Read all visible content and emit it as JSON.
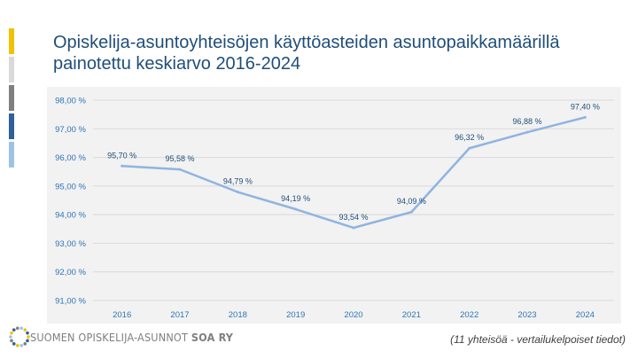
{
  "slide": {
    "title_line1": "Opiskelija-asuntoyhteisöjen käyttöasteiden asuntopaikkamäärillä",
    "title_line2": "painotettu keskiarvo 2016-2024",
    "footnote": "(11 yhteisöä - vertailukelpoiset tiedot)",
    "logo_text_main": "SUOMEN OPISKELIJA-ASUNNOT",
    "logo_text_bold": "SOA RY",
    "accent_bars": [
      "#ffffff",
      "#f2c200",
      "#d9d9d9",
      "#7f7f7f",
      "#2e5f9e",
      "#9dc3e6"
    ]
  },
  "chart_data": {
    "type": "line",
    "title": "",
    "xlabel": "",
    "ylabel": "",
    "categories": [
      "2016",
      "2017",
      "2018",
      "2019",
      "2020",
      "2021",
      "2022",
      "2023",
      "2024"
    ],
    "series": [
      {
        "values": [
          95.7,
          95.58,
          94.79,
          94.19,
          93.54,
          94.09,
          96.32,
          96.88,
          97.4
        ],
        "labels": [
          "95,70 %",
          "95,58 %",
          "94,79 %",
          "94,19 %",
          "93,54 %",
          "94,09 %",
          "96,32 %",
          "96,88 %",
          "97,40 %"
        ],
        "color": "#8fb4e0"
      }
    ],
    "ylim": [
      91,
      98
    ],
    "yticks": [
      91,
      92,
      93,
      94,
      95,
      96,
      97,
      98
    ],
    "ytick_labels": [
      "91,00 %",
      "92,00 %",
      "93,00 %",
      "94,00 %",
      "95,00 %",
      "96,00 %",
      "97,00 %",
      "98,00 %"
    ],
    "grid": true,
    "legend": "none",
    "tick_color": "#2e75b6"
  }
}
